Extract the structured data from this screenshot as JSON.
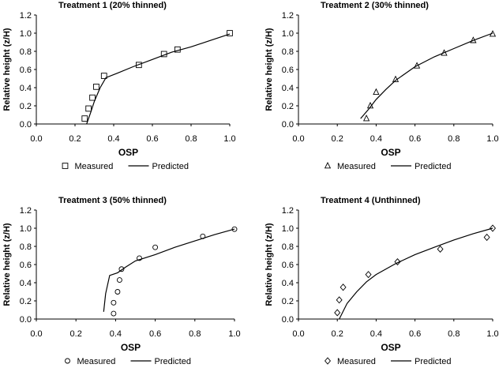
{
  "chart_data": [
    {
      "type": "scatter",
      "title": "Treatment 1 (20% thinned)",
      "xlabel": "OSP",
      "ylabel": "Relative height (z/H)",
      "xlim": [
        0,
        1.0
      ],
      "ylim": [
        0,
        1.2
      ],
      "xticks": [
        "0.0",
        "0.2",
        "0.4",
        "0.6",
        "0.8",
        "1.0"
      ],
      "yticks": [
        "0.0",
        "0.2",
        "0.4",
        "0.6",
        "0.8",
        "1.0",
        "1.2"
      ],
      "grid": false,
      "legend_position": "bottom",
      "marker": "square",
      "series": [
        {
          "name": "Measured",
          "points": [
            [
              0.25,
              0.06
            ],
            [
              0.27,
              0.17
            ],
            [
              0.29,
              0.29
            ],
            [
              0.31,
              0.41
            ],
            [
              0.35,
              0.53
            ],
            [
              0.53,
              0.65
            ],
            [
              0.66,
              0.77
            ],
            [
              0.73,
              0.82
            ],
            [
              1.0,
              1.0
            ]
          ]
        },
        {
          "name": "Predicted",
          "points": [
            [
              0.26,
              0.0
            ],
            [
              0.28,
              0.12
            ],
            [
              0.3,
              0.25
            ],
            [
              0.33,
              0.4
            ],
            [
              0.36,
              0.51
            ],
            [
              0.42,
              0.56
            ],
            [
              0.5,
              0.63
            ],
            [
              0.6,
              0.71
            ],
            [
              0.7,
              0.79
            ],
            [
              0.8,
              0.85
            ],
            [
              0.9,
              0.92
            ],
            [
              1.0,
              0.99
            ]
          ]
        }
      ]
    },
    {
      "type": "scatter",
      "title": "Treatment 2 (30% thinned)",
      "xlabel": "OSP",
      "ylabel": "Relative height (z/H)",
      "xlim": [
        0,
        1.0
      ],
      "ylim": [
        0,
        1.2
      ],
      "xticks": [
        "0.0",
        "0.2",
        "0.4",
        "0.6",
        "0.8",
        "1.0"
      ],
      "yticks": [
        "0.0",
        "0.2",
        "0.4",
        "0.6",
        "0.8",
        "1.0",
        "1.2"
      ],
      "grid": false,
      "legend_position": "bottom",
      "marker": "triangle",
      "series": [
        {
          "name": "Measured",
          "points": [
            [
              0.35,
              0.06
            ],
            [
              0.37,
              0.2
            ],
            [
              0.4,
              0.35
            ],
            [
              0.5,
              0.49
            ],
            [
              0.61,
              0.64
            ],
            [
              0.75,
              0.78
            ],
            [
              0.9,
              0.92
            ],
            [
              1.0,
              0.99
            ]
          ]
        },
        {
          "name": "Predicted",
          "points": [
            [
              0.32,
              0.06
            ],
            [
              0.36,
              0.16
            ],
            [
              0.4,
              0.27
            ],
            [
              0.45,
              0.38
            ],
            [
              0.5,
              0.48
            ],
            [
              0.6,
              0.63
            ],
            [
              0.7,
              0.74
            ],
            [
              0.8,
              0.83
            ],
            [
              0.9,
              0.92
            ],
            [
              1.0,
              1.0
            ]
          ]
        }
      ]
    },
    {
      "type": "scatter",
      "title": "Treatment 3 (50% thinned)",
      "xlabel": "OSP",
      "ylabel": "Relative height (z/H)",
      "xlim": [
        0,
        1.0
      ],
      "ylim": [
        0,
        1.2
      ],
      "xticks": [
        "0.0",
        "0.2",
        "0.4",
        "0.6",
        "0.8",
        "1.0"
      ],
      "yticks": [
        "0.0",
        "0.2",
        "0.4",
        "0.6",
        "0.8",
        "1.0",
        "1.2"
      ],
      "grid": false,
      "legend_position": "bottom",
      "marker": "circle",
      "series": [
        {
          "name": "Measured",
          "points": [
            [
              0.39,
              0.06
            ],
            [
              0.39,
              0.18
            ],
            [
              0.41,
              0.3
            ],
            [
              0.42,
              0.43
            ],
            [
              0.43,
              0.55
            ],
            [
              0.52,
              0.67
            ],
            [
              0.6,
              0.79
            ],
            [
              0.84,
              0.91
            ],
            [
              1.0,
              0.99
            ]
          ]
        },
        {
          "name": "Predicted",
          "points": [
            [
              0.34,
              0.08
            ],
            [
              0.35,
              0.28
            ],
            [
              0.37,
              0.48
            ],
            [
              0.41,
              0.51
            ],
            [
              0.45,
              0.57
            ],
            [
              0.5,
              0.64
            ],
            [
              0.6,
              0.71
            ],
            [
              0.7,
              0.79
            ],
            [
              0.8,
              0.86
            ],
            [
              0.9,
              0.93
            ],
            [
              1.0,
              0.99
            ]
          ]
        }
      ]
    },
    {
      "type": "scatter",
      "title": "Treatment 4 (Unthinned)",
      "xlabel": "OSP",
      "ylabel": "Relative height (z/H)",
      "xlim": [
        0,
        1.0
      ],
      "ylim": [
        0,
        1.2
      ],
      "xticks": [
        "0.0",
        "0.2",
        "0.4",
        "0.6",
        "0.8",
        "1.0"
      ],
      "yticks": [
        "0.0",
        "0.2",
        "0.4",
        "0.6",
        "0.8",
        "1.0",
        "1.2"
      ],
      "grid": false,
      "legend_position": "bottom",
      "marker": "diamond",
      "series": [
        {
          "name": "Measured",
          "points": [
            [
              0.2,
              0.07
            ],
            [
              0.21,
              0.21
            ],
            [
              0.23,
              0.35
            ],
            [
              0.36,
              0.49
            ],
            [
              0.51,
              0.63
            ],
            [
              0.73,
              0.77
            ],
            [
              0.97,
              0.9
            ],
            [
              1.0,
              1.0
            ]
          ]
        },
        {
          "name": "Predicted",
          "points": [
            [
              0.21,
              0.0
            ],
            [
              0.25,
              0.17
            ],
            [
              0.3,
              0.3
            ],
            [
              0.35,
              0.41
            ],
            [
              0.4,
              0.49
            ],
            [
              0.5,
              0.61
            ],
            [
              0.6,
              0.71
            ],
            [
              0.7,
              0.79
            ],
            [
              0.8,
              0.87
            ],
            [
              0.9,
              0.94
            ],
            [
              1.0,
              1.0
            ]
          ]
        }
      ]
    }
  ]
}
